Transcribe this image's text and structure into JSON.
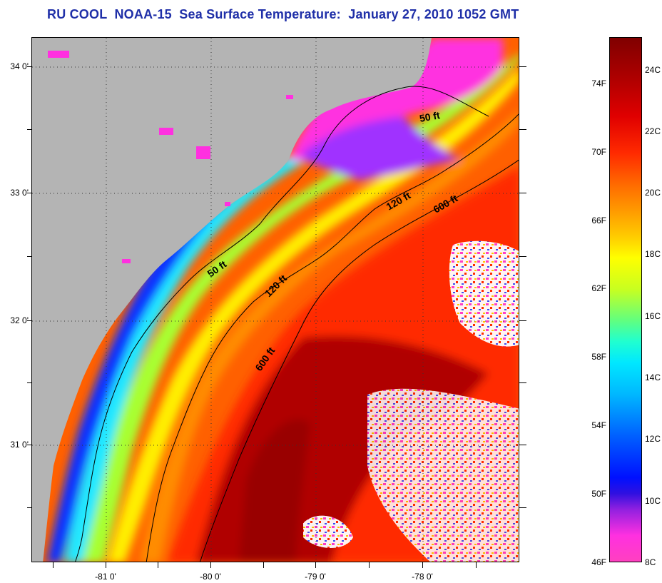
{
  "title": "RU COOL  NOAA-15  Sea Surface Temperature:  January 27, 2010 1052 GMT",
  "map": {
    "lat_labels": [
      "34 0'",
      "33 0'",
      "32 0'",
      "31 0'"
    ],
    "lon_labels": [
      "-81 0'",
      "-80 0'",
      "-79 0'",
      "-78 0'"
    ],
    "isobath_labels": [
      "50 ft",
      "50 ft",
      "120 ft",
      "120 ft",
      "600 ft",
      "600 ft"
    ],
    "land_color": "#b4b4b4"
  },
  "colorbar": {
    "fahrenheit_labels": [
      "74F",
      "70F",
      "66F",
      "62F",
      "58F",
      "54F",
      "50F",
      "46F"
    ],
    "celsius_labels": [
      "24C",
      "22C",
      "20C",
      "18C",
      "16C",
      "14C",
      "12C",
      "10C",
      "8C"
    ]
  }
}
